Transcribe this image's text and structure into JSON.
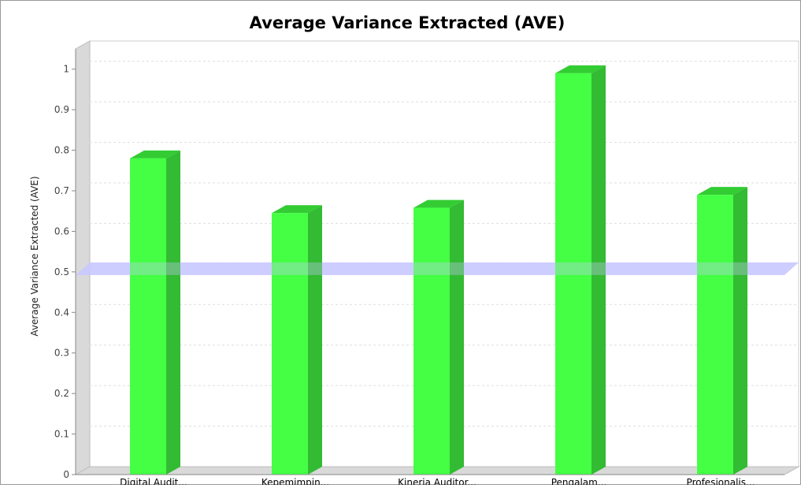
{
  "chart_data": {
    "type": "bar",
    "title": "Average Variance Extracted (AVE)",
    "xlabel": "",
    "ylabel": "Average Variance Extracted (AVE)",
    "categories": [
      "Digital Audit...",
      "Kepemimpin...",
      "Kinerja Auditor...",
      "Pengalam...",
      "Profesionalis..."
    ],
    "values": [
      0.78,
      0.645,
      0.658,
      0.99,
      0.69
    ],
    "ylim": [
      0,
      1.05
    ],
    "yticks": [
      "0",
      "0.1",
      "0.2",
      "0.3",
      "0.4",
      "0.5",
      "0.6",
      "0.7",
      "0.8",
      "0.9",
      "1"
    ],
    "reference_line": 0.5,
    "grid": true,
    "legend": "none",
    "colors": {
      "bar_front": "#44ff44",
      "bar_side": "#33bb33",
      "bar_top": "#33cc33",
      "reference_line": "#c8c8ff",
      "grid": "#dddddd",
      "plot_wall": "#d9d9d9",
      "border": "#888888"
    }
  }
}
